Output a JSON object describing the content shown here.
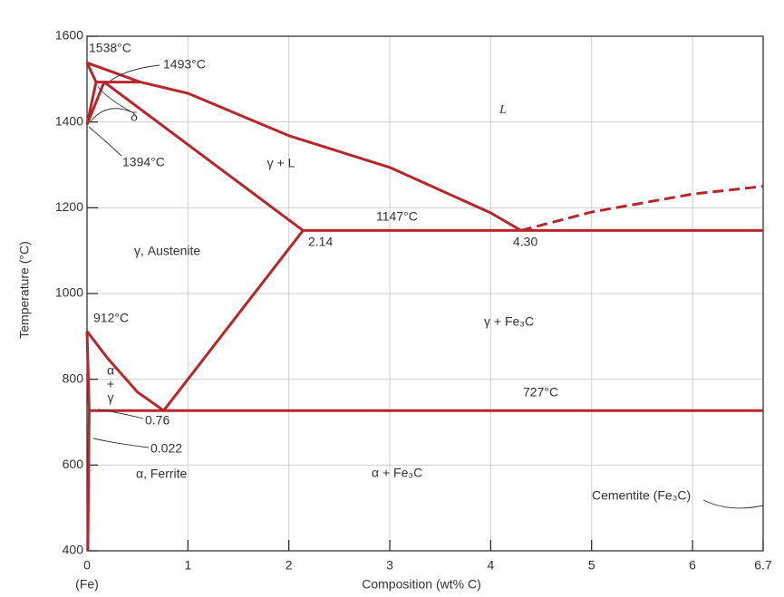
{
  "chart_data": {
    "type": "line",
    "xlabel": "Composition (wt% C)",
    "ylabel": "Temperature (°C)",
    "xlim": [
      0,
      6.7
    ],
    "ylim": [
      400,
      1600
    ],
    "xticks": [
      0,
      1,
      2,
      3,
      4,
      5,
      6,
      6.7
    ],
    "yticks": [
      400,
      600,
      800,
      1000,
      1200,
      1400,
      1600
    ],
    "x_origin_label": "(Fe)",
    "grid": true,
    "series": [
      {
        "color": "#b8262c",
        "x": [
          0,
          0.53,
          1,
          2,
          3,
          4,
          4.3
        ],
        "values": [
          1538,
          1493,
          1467,
          1368,
          1294,
          1188,
          1147
        ]
      },
      {
        "color": "#b8262c",
        "x": [
          0,
          0.09
        ],
        "values": [
          1538,
          1493
        ]
      },
      {
        "color": "#b8262c",
        "x": [
          0,
          0.09
        ],
        "values": [
          1394,
          1493
        ]
      },
      {
        "color": "#b8262c",
        "x": [
          0,
          0.17
        ],
        "values": [
          1394,
          1493
        ]
      },
      {
        "color": "#b8262c",
        "x": [
          0.09,
          0.53
        ],
        "values": [
          1493,
          1493
        ]
      },
      {
        "color": "#b8262c",
        "x": [
          0.17,
          2.14
        ],
        "values": [
          1493,
          1147
        ]
      },
      {
        "color": "#b8262c",
        "x": [
          2.14,
          6.7
        ],
        "values": [
          1147,
          1147
        ]
      },
      {
        "color": "#b8262c",
        "dashed": true,
        "x": [
          4.3,
          5,
          6,
          6.7
        ],
        "values": [
          1147,
          1190,
          1232,
          1250
        ]
      },
      {
        "color": "#b8262c",
        "x": [
          0,
          0.2,
          0.5,
          0.76
        ],
        "values": [
          912,
          850,
          770,
          727
        ]
      },
      {
        "color": "#b8262c",
        "x": [
          0.76,
          2.14
        ],
        "values": [
          727,
          1147
        ]
      },
      {
        "color": "#b8262c",
        "x": [
          0.022,
          6.7
        ],
        "values": [
          727,
          727
        ]
      },
      {
        "color": "#b8262c",
        "x": [
          0,
          0.022
        ],
        "values": [
          912,
          727
        ]
      },
      {
        "color": "#b8262c",
        "x": [
          0.022,
          0.008
        ],
        "values": [
          727,
          400
        ]
      }
    ],
    "annotations": [
      "1538°C",
      "1493°C",
      "δ",
      "1394°C",
      "γ + L",
      "L",
      "1147°C",
      "2.14",
      "4.30",
      "γ, Austenite",
      "912°C",
      "γ + Fe₃C",
      "α",
      "+",
      "γ",
      "727°C",
      "0.76",
      "0.022",
      "α, Ferrite",
      "α + Fe₃C",
      "Cementite (Fe₃C)"
    ]
  }
}
